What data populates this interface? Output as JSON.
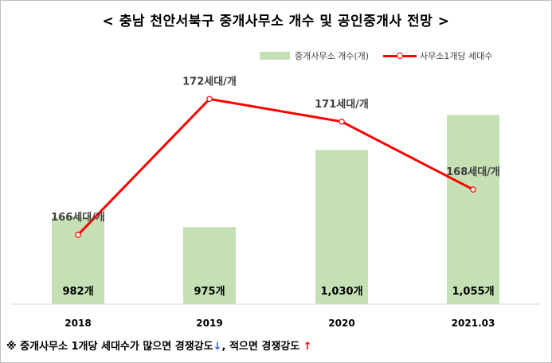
{
  "title": "< 충남 천안서북구 중개사무소 개수 및 공인중개사 전망 >",
  "colors": {
    "bar": "#c5e0b4",
    "line": "#ff0000",
    "arrow_down": "#2f5fe0",
    "arrow_up": "#ff0000"
  },
  "chart_data": {
    "type": "bar",
    "categories": [
      "2018",
      "2019",
      "2020",
      "2021.03"
    ],
    "series": [
      {
        "name": "중개사무소 개수(개)",
        "type": "bar",
        "axis": "primary",
        "values": [
          982,
          975,
          1030,
          1055
        ],
        "labels": [
          "982개",
          "975개",
          "1,030개",
          "1,055개"
        ]
      },
      {
        "name": "사무소1개당 세대수",
        "type": "line",
        "axis": "secondary",
        "values": [
          166,
          172,
          171,
          168
        ],
        "labels": [
          "166세대/개",
          "172세대/개",
          "171세대/개",
          "168세대/개"
        ]
      }
    ],
    "grid": false,
    "legend_position": "top-right"
  },
  "note": {
    "prefix": "※ 중개사무소 1개당 세대수가 많으면 경쟁강도",
    "arrow_down": "↓",
    "middle": ", 적으면 경쟁강도 ",
    "arrow_up": "↑"
  }
}
